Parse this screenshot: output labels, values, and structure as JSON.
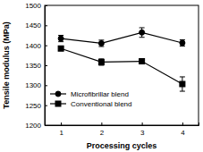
{
  "chart_data": {
    "type": "line",
    "x_label": "Processing cycles",
    "y_label": "Tensile modulus (MPa)",
    "x": [
      1,
      2,
      3,
      4
    ],
    "series": [
      {
        "name": "Microfibrillar blend",
        "color": "#000000",
        "marker": "circle",
        "line_style": "solid",
        "values": [
          1417,
          1405,
          1432,
          1406
        ],
        "errors": [
          8,
          8,
          12,
          8
        ]
      },
      {
        "name": "Conventional blend",
        "color": "#000000",
        "marker": "square",
        "line_style": "solid",
        "values": [
          1392,
          1358,
          1360,
          1303
        ],
        "errors": [
          5,
          8,
          3,
          18
        ]
      }
    ],
    "xlim": [
      0.6,
      4.4
    ],
    "xticks": [
      1,
      2,
      3,
      4
    ],
    "ylim": [
      1200,
      1500
    ],
    "yticks": [
      1200,
      1250,
      1300,
      1350,
      1400,
      1450,
      1500
    ],
    "grid": false,
    "legend": "lower left"
  }
}
